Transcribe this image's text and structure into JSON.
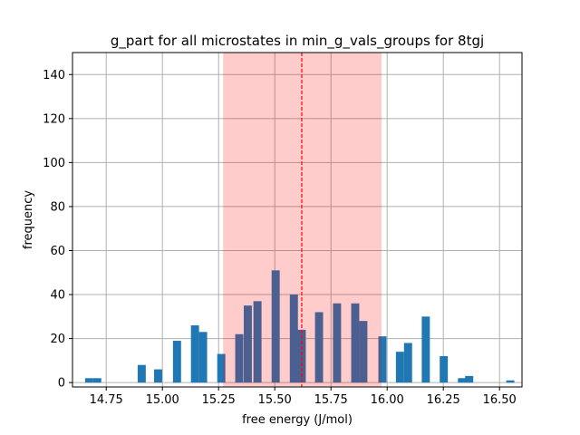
{
  "chart_data": {
    "type": "bar",
    "title": "g_part for all microstates in min_g_vals_groups for 8tgj",
    "xlabel": "free energy (J/mol)",
    "ylabel": "frequency",
    "xlim": [
      14.6,
      16.6
    ],
    "ylim": [
      -2,
      150
    ],
    "grid": true,
    "xticks": [
      "14.75",
      "15.00",
      "15.25",
      "15.50",
      "15.75",
      "16.00",
      "16.25",
      "16.50"
    ],
    "xtick_values": [
      14.75,
      15.0,
      15.25,
      15.5,
      15.75,
      16.0,
      16.25,
      16.5
    ],
    "yticks": [
      "0",
      "20",
      "40",
      "60",
      "80",
      "100",
      "120",
      "140"
    ],
    "ytick_values": [
      0,
      20,
      40,
      60,
      80,
      100,
      120,
      140
    ],
    "bin_width": 0.036,
    "bars": [
      {
        "x": 14.674,
        "y": 2
      },
      {
        "x": 14.71,
        "y": 2
      },
      {
        "x": 14.908,
        "y": 8
      },
      {
        "x": 14.981,
        "y": 6
      },
      {
        "x": 15.065,
        "y": 19
      },
      {
        "x": 15.145,
        "y": 26
      },
      {
        "x": 15.181,
        "y": 23
      },
      {
        "x": 15.262,
        "y": 13
      },
      {
        "x": 15.342,
        "y": 22
      },
      {
        "x": 15.38,
        "y": 35
      },
      {
        "x": 15.423,
        "y": 37
      },
      {
        "x": 15.504,
        "y": 51
      },
      {
        "x": 15.585,
        "y": 40
      },
      {
        "x": 15.62,
        "y": 24
      },
      {
        "x": 15.697,
        "y": 32
      },
      {
        "x": 15.777,
        "y": 36
      },
      {
        "x": 15.858,
        "y": 36
      },
      {
        "x": 15.894,
        "y": 28
      },
      {
        "x": 15.979,
        "y": 21
      },
      {
        "x": 16.057,
        "y": 14
      },
      {
        "x": 16.093,
        "y": 18
      },
      {
        "x": 16.172,
        "y": 30
      },
      {
        "x": 16.252,
        "y": 12
      },
      {
        "x": 16.333,
        "y": 2
      },
      {
        "x": 16.365,
        "y": 3
      },
      {
        "x": 16.548,
        "y": 1
      }
    ],
    "highlight_range": [
      15.27,
      15.975
    ],
    "vline": 15.62,
    "colors": {
      "bar": "#1f77b4",
      "highlight": "#ff0000",
      "highlight_alpha": 0.2,
      "vline": "#ff0000",
      "grid": "#b0b0b0"
    }
  }
}
